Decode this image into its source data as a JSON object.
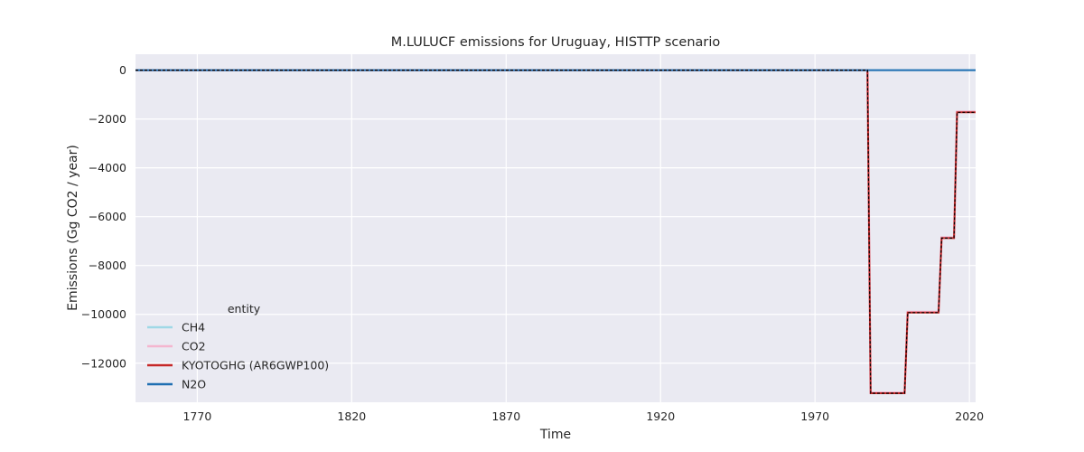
{
  "chart_data": {
    "type": "line",
    "title": "M.LULUCF emissions for Uruguay, HISTTP scenario",
    "xlabel": "Time",
    "ylabel": "Emissions (Gg CO2 / year)",
    "xlim": [
      1750,
      2022
    ],
    "ylim": [
      -13600,
      650
    ],
    "x_ticks": [
      1770,
      1820,
      1870,
      1920,
      1970,
      2020
    ],
    "y_ticks": [
      0,
      -2000,
      -4000,
      -6000,
      -8000,
      -10000,
      -12000
    ],
    "grid": true,
    "legend_title": "entity",
    "legend_position": "lower-left",
    "series": [
      {
        "name": "CH4",
        "color": "#9fd8e6",
        "width": 2,
        "points": [
          [
            1750,
            0
          ],
          [
            2022,
            0
          ]
        ]
      },
      {
        "name": "CO2",
        "color": "#f4b6cf",
        "width": 2.5,
        "points": [
          [
            1750,
            0
          ],
          [
            1987,
            0
          ],
          [
            1988,
            -13200
          ],
          [
            1999,
            -13200
          ],
          [
            2000,
            -9900
          ],
          [
            2010,
            -9900
          ],
          [
            2011,
            -6850
          ],
          [
            2015,
            -6850
          ],
          [
            2016,
            -1700
          ],
          [
            2022,
            -1700
          ]
        ]
      },
      {
        "name": "KYOTOGHG (AR6GWP100)",
        "color": "#c62828",
        "width": 2,
        "points": [
          [
            1750,
            0
          ],
          [
            1987,
            0
          ],
          [
            1988,
            -13230
          ],
          [
            1999,
            -13230
          ],
          [
            2000,
            -9930
          ],
          [
            2010,
            -9930
          ],
          [
            2011,
            -6880
          ],
          [
            2015,
            -6880
          ],
          [
            2016,
            -1730
          ],
          [
            2022,
            -1730
          ]
        ]
      },
      {
        "name": "N2O",
        "color": "#1f6fb2",
        "width": 2,
        "points": [
          [
            1750,
            0
          ],
          [
            2022,
            0
          ]
        ]
      }
    ],
    "overlay": {
      "color": "#000000",
      "dash": "3,2",
      "points": [
        [
          1750,
          0
        ],
        [
          1987,
          0
        ],
        [
          1988,
          -13230
        ],
        [
          1999,
          -13230
        ],
        [
          2000,
          -9930
        ],
        [
          2010,
          -9930
        ],
        [
          2011,
          -6880
        ],
        [
          2015,
          -6880
        ],
        [
          2016,
          -1730
        ],
        [
          2022,
          -1730
        ]
      ]
    }
  }
}
